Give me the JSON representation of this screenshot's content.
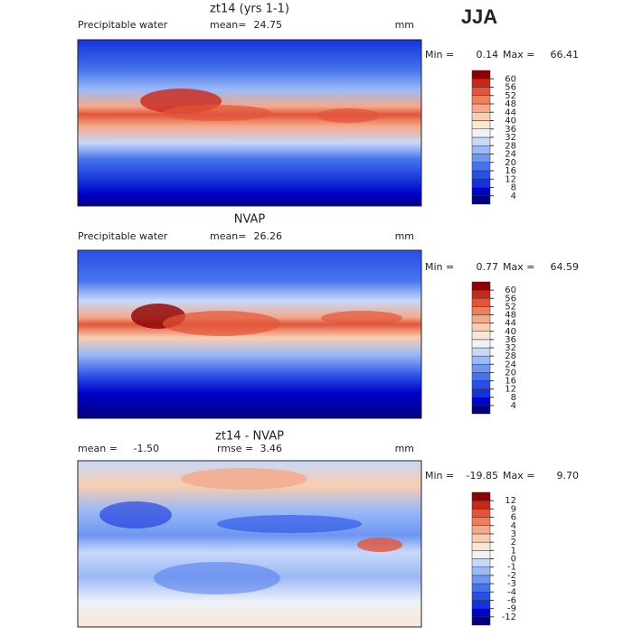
{
  "title": "JJA",
  "panels": [
    {
      "title": "zt14 (yrs 1-1)",
      "subtitle": "Precipitable water",
      "mean_label": "mean=",
      "mean": 24.75,
      "units": "mm",
      "min_label": "Min =",
      "min": 0.14,
      "max_label": "Max =",
      "max": 66.41,
      "levels": [
        4,
        8,
        12,
        16,
        20,
        24,
        28,
        32,
        36,
        40,
        44,
        48,
        52,
        56,
        60
      ],
      "colors": [
        "#000080",
        "#0000c8",
        "#1432dc",
        "#2850e6",
        "#4673ec",
        "#6e96f2",
        "#9bb9f6",
        "#c8d8f9",
        "#eef1f8",
        "#fbe6d4",
        "#f8cdb0",
        "#f4a98a",
        "#ee7f5e",
        "#e2553a",
        "#c8281c",
        "#8c0000"
      ]
    },
    {
      "title": "NVAP",
      "subtitle": "Precipitable water",
      "mean_label": "mean=",
      "mean": 26.26,
      "units": "mm",
      "min_label": "Min =",
      "min": 0.77,
      "max_label": "Max =",
      "max": 64.59,
      "levels": [
        4,
        8,
        12,
        16,
        20,
        24,
        28,
        32,
        36,
        40,
        44,
        48,
        52,
        56,
        60
      ],
      "colors": [
        "#000080",
        "#0000c8",
        "#1432dc",
        "#2850e6",
        "#4673ec",
        "#6e96f2",
        "#9bb9f6",
        "#c8d8f9",
        "#eef1f8",
        "#fbe6d4",
        "#f8cdb0",
        "#f4a98a",
        "#ee7f5e",
        "#e2553a",
        "#c8281c",
        "#8c0000"
      ]
    },
    {
      "title": "zt14 - NVAP",
      "mean_label": "mean =",
      "mean": {
        "value": -1.5,
        "label": "-1.50"
      },
      "rmse_label": "rmse =",
      "rmse": 3.46,
      "units": "mm",
      "min_label": "Min =",
      "min": -19.85,
      "max_label": "Max =",
      "max": {
        "value": 9.7,
        "label": "9.70"
      },
      "levels": [
        -12,
        -9,
        -6,
        -4,
        -3,
        -2,
        -1,
        0,
        1,
        2,
        3,
        4,
        6,
        9,
        12
      ],
      "colors": [
        "#000080",
        "#0000c8",
        "#1432dc",
        "#2850e6",
        "#4673ec",
        "#6e96f2",
        "#9bb9f6",
        "#c8d8f9",
        "#eef1f8",
        "#fbe6d4",
        "#f8cdb0",
        "#f4a98a",
        "#ee7f5e",
        "#e2553a",
        "#c8281c",
        "#8c0000"
      ]
    }
  ]
}
